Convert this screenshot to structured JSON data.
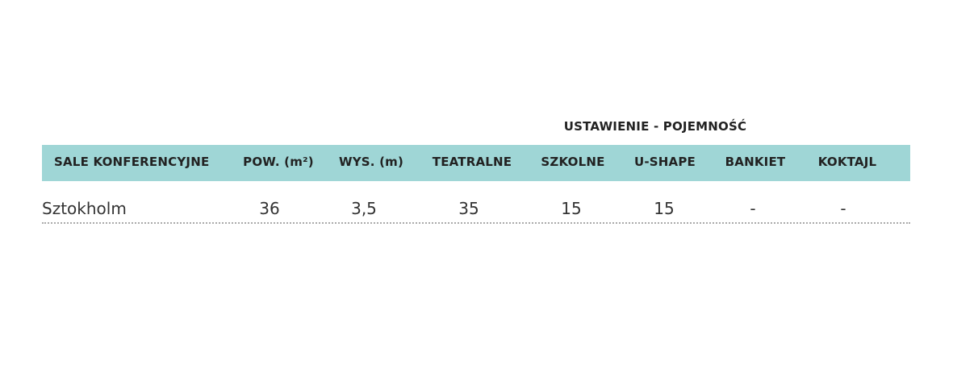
{
  "table": {
    "group_header": "USTAWIENIE - POJEMNOŚĆ",
    "header": [
      "SALE KONFERENCYJNE",
      "POW. (m²)",
      "WYS. (m)",
      "TEATRALNE",
      "SZKOLNE",
      "U-SHAPE",
      "BANKIET",
      "KOKTAJL"
    ],
    "rows": [
      [
        "Sztokholm",
        "36",
        "3,5",
        "35",
        "15",
        "15",
        "-",
        "-"
      ]
    ]
  }
}
